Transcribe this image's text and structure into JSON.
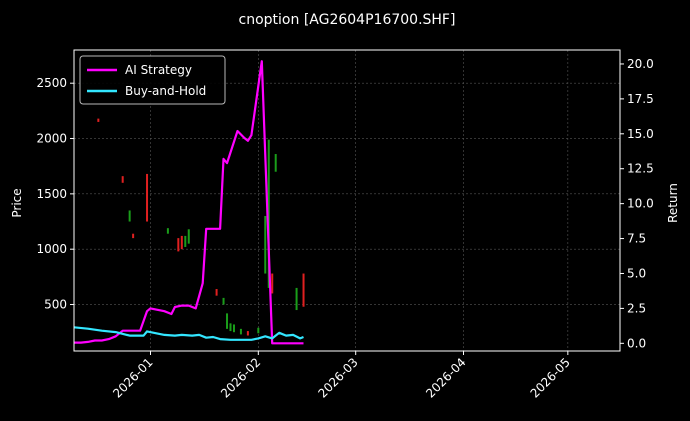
{
  "chart_data": {
    "type": "line",
    "title": "cnoption [AG2604P16700.SHF]",
    "ylabel": "Price",
    "y2label": "Return",
    "ylim": [
      80,
      2800
    ],
    "y2lim": [
      -0.55,
      21.0
    ],
    "xlim": [
      "2025-12-10",
      "2026-05-16"
    ],
    "yticks": [
      500,
      1000,
      1500,
      2000,
      2500
    ],
    "y2ticks": [
      0.0,
      2.5,
      5.0,
      7.5,
      10.0,
      12.5,
      15.0,
      17.5,
      20.0
    ],
    "xticks": [
      "2026-01",
      "2026-02",
      "2026-03",
      "2026-04",
      "2026-05"
    ],
    "grid": true,
    "legend_position": "top-left",
    "series": [
      {
        "name": "AI Strategy",
        "axis": "right",
        "color": "#ff00ff",
        "points": [
          [
            "2025-12-10",
            0.05
          ],
          [
            "2025-12-12",
            0.05
          ],
          [
            "2025-12-14",
            0.1
          ],
          [
            "2025-12-16",
            0.2
          ],
          [
            "2025-12-18",
            0.2
          ],
          [
            "2025-12-20",
            0.3
          ],
          [
            "2025-12-22",
            0.5
          ],
          [
            "2025-12-24",
            0.9
          ],
          [
            "2025-12-26",
            0.9
          ],
          [
            "2025-12-29",
            0.9
          ],
          [
            "2025-12-31",
            2.3
          ],
          [
            "2026-01-01",
            2.5
          ],
          [
            "2026-01-05",
            2.3
          ],
          [
            "2026-01-07",
            2.1
          ],
          [
            "2026-01-08",
            2.6
          ],
          [
            "2026-01-10",
            2.7
          ],
          [
            "2026-01-12",
            2.7
          ],
          [
            "2026-01-14",
            2.5
          ],
          [
            "2026-01-16",
            4.3
          ],
          [
            "2026-01-17",
            8.2
          ],
          [
            "2026-01-19",
            8.2
          ],
          [
            "2026-01-21",
            8.2
          ],
          [
            "2026-01-22",
            13.2
          ],
          [
            "2026-01-23",
            12.9
          ],
          [
            "2026-01-26",
            15.2
          ],
          [
            "2026-01-28",
            14.7
          ],
          [
            "2026-01-29",
            14.5
          ],
          [
            "2026-01-30",
            14.9
          ],
          [
            "2026-02-02",
            20.2
          ],
          [
            "2026-02-05",
            0.0
          ],
          [
            "2026-02-14",
            0.0
          ]
        ]
      },
      {
        "name": "Buy-and-Hold",
        "axis": "right",
        "color": "#33e6ff",
        "points": [
          [
            "2025-12-10",
            1.15
          ],
          [
            "2025-12-14",
            1.05
          ],
          [
            "2025-12-18",
            0.9
          ],
          [
            "2025-12-22",
            0.8
          ],
          [
            "2025-12-26",
            0.55
          ],
          [
            "2025-12-29",
            0.55
          ],
          [
            "2025-12-30",
            0.55
          ],
          [
            "2025-12-31",
            0.85
          ],
          [
            "2026-01-05",
            0.6
          ],
          [
            "2026-01-08",
            0.55
          ],
          [
            "2026-01-10",
            0.6
          ],
          [
            "2026-01-13",
            0.55
          ],
          [
            "2026-01-15",
            0.6
          ],
          [
            "2026-01-17",
            0.4
          ],
          [
            "2026-01-19",
            0.45
          ],
          [
            "2026-01-21",
            0.3
          ],
          [
            "2026-01-24",
            0.25
          ],
          [
            "2026-01-27",
            0.25
          ],
          [
            "2026-01-30",
            0.25
          ],
          [
            "2026-02-01",
            0.35
          ],
          [
            "2026-02-03",
            0.5
          ],
          [
            "2026-02-05",
            0.35
          ],
          [
            "2026-02-07",
            0.75
          ],
          [
            "2026-02-09",
            0.55
          ],
          [
            "2026-02-11",
            0.6
          ],
          [
            "2026-02-13",
            0.35
          ],
          [
            "2026-02-14",
            0.45
          ]
        ]
      }
    ],
    "candlesticks": {
      "axis": "left",
      "up_color": "#1a9e1a",
      "down_color": "#e02020",
      "bars": [
        [
          "2025-12-17",
          2150,
          2180,
          "down"
        ],
        [
          "2025-12-24",
          1600,
          1660,
          "down"
        ],
        [
          "2025-12-26",
          1250,
          1350,
          "up"
        ],
        [
          "2025-12-27",
          1100,
          1140,
          "down"
        ],
        [
          "2025-12-31",
          1250,
          1680,
          "down"
        ],
        [
          "2026-01-06",
          1140,
          1190,
          "up"
        ],
        [
          "2026-01-09",
          980,
          1100,
          "down"
        ],
        [
          "2026-01-10",
          1000,
          1120,
          "down"
        ],
        [
          "2026-01-11",
          1020,
          1120,
          "up"
        ],
        [
          "2026-01-12",
          1050,
          1180,
          "up"
        ],
        [
          "2026-01-20",
          580,
          640,
          "down"
        ],
        [
          "2026-01-22",
          500,
          560,
          "up"
        ],
        [
          "2026-01-23",
          280,
          420,
          "up"
        ],
        [
          "2026-01-24",
          260,
          330,
          "up"
        ],
        [
          "2026-01-25",
          250,
          320,
          "up"
        ],
        [
          "2026-01-27",
          230,
          280,
          "up"
        ],
        [
          "2026-01-29",
          220,
          260,
          "down"
        ],
        [
          "2026-02-01",
          240,
          290,
          "up"
        ],
        [
          "2026-02-03",
          780,
          1300,
          "up"
        ],
        [
          "2026-02-04",
          650,
          1990,
          "up"
        ],
        [
          "2026-02-05",
          600,
          780,
          "down"
        ],
        [
          "2026-02-06",
          1700,
          1860,
          "up"
        ],
        [
          "2026-02-12",
          450,
          650,
          "up"
        ],
        [
          "2026-02-14",
          480,
          780,
          "down"
        ]
      ]
    }
  }
}
